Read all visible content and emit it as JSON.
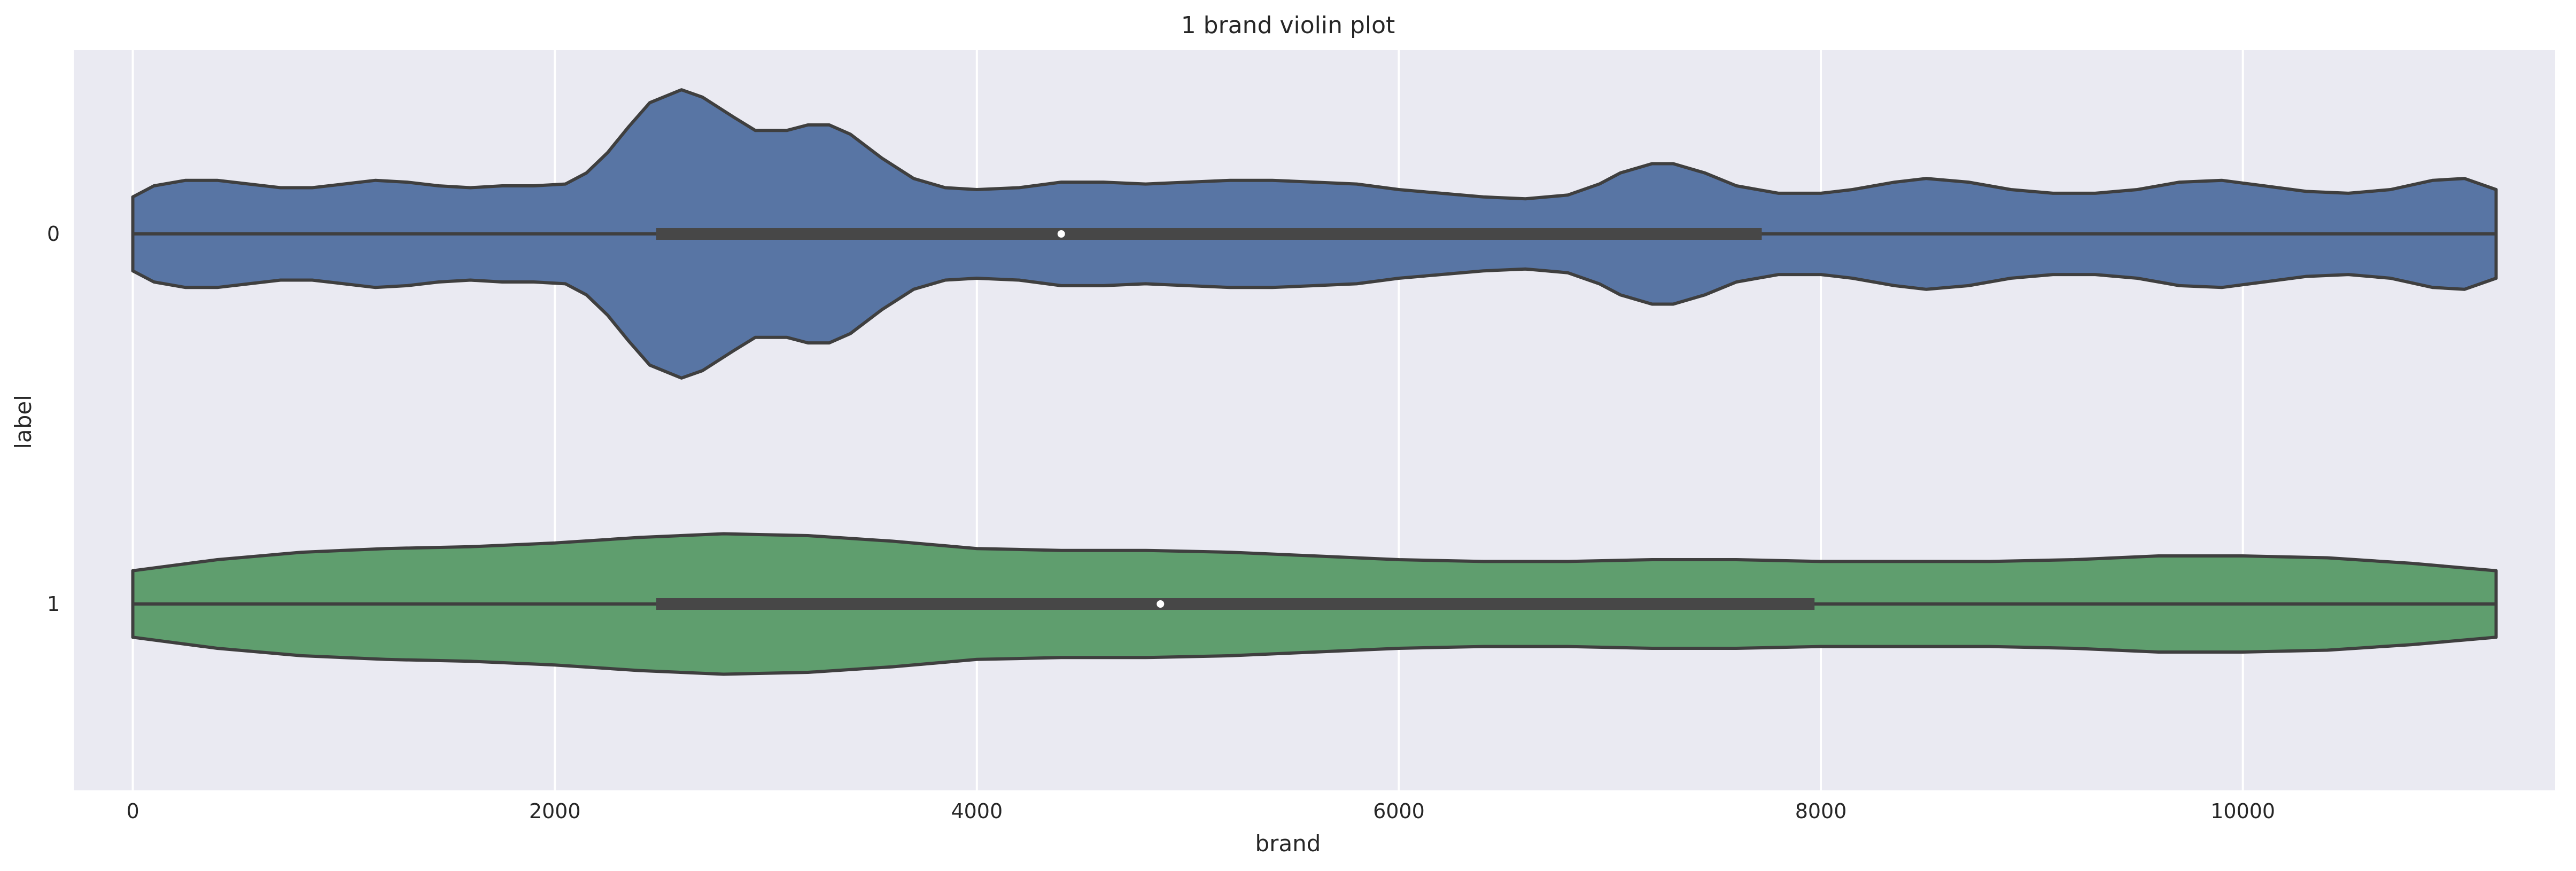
{
  "chart_data": {
    "type": "violin",
    "title": "1 brand violin plot",
    "xlabel": "brand",
    "ylabel": "label",
    "xlim": [
      -280,
      11480
    ],
    "x_ticks": [
      0,
      2000,
      4000,
      6000,
      8000,
      10000
    ],
    "x_tick_labels": [
      "0",
      "2000",
      "4000",
      "6000",
      "8000",
      "10000"
    ],
    "orientation": "horizontal",
    "grid": true,
    "categories": [
      "0",
      "1"
    ],
    "colors": [
      "#5875a4",
      "#5f9e6e"
    ],
    "series": [
      {
        "category": "0",
        "range": [
          0,
          11200
        ],
        "q1": 2480,
        "median": 4400,
        "q3": 7720,
        "density_profile": [
          [
            0,
            0.2
          ],
          [
            100,
            0.26
          ],
          [
            250,
            0.29
          ],
          [
            400,
            0.29
          ],
          [
            550,
            0.27
          ],
          [
            700,
            0.25
          ],
          [
            850,
            0.25
          ],
          [
            1000,
            0.27
          ],
          [
            1150,
            0.29
          ],
          [
            1300,
            0.28
          ],
          [
            1450,
            0.26
          ],
          [
            1600,
            0.25
          ],
          [
            1750,
            0.26
          ],
          [
            1900,
            0.26
          ],
          [
            2050,
            0.27
          ],
          [
            2150,
            0.33
          ],
          [
            2250,
            0.44
          ],
          [
            2350,
            0.58
          ],
          [
            2450,
            0.71
          ],
          [
            2600,
            0.78
          ],
          [
            2700,
            0.74
          ],
          [
            2850,
            0.63
          ],
          [
            2950,
            0.56
          ],
          [
            3100,
            0.56
          ],
          [
            3200,
            0.59
          ],
          [
            3300,
            0.59
          ],
          [
            3400,
            0.54
          ],
          [
            3550,
            0.41
          ],
          [
            3700,
            0.3
          ],
          [
            3850,
            0.25
          ],
          [
            4000,
            0.24
          ],
          [
            4200,
            0.25
          ],
          [
            4400,
            0.28
          ],
          [
            4600,
            0.28
          ],
          [
            4800,
            0.27
          ],
          [
            5000,
            0.28
          ],
          [
            5200,
            0.29
          ],
          [
            5400,
            0.29
          ],
          [
            5600,
            0.28
          ],
          [
            5800,
            0.27
          ],
          [
            6000,
            0.24
          ],
          [
            6200,
            0.22
          ],
          [
            6400,
            0.2
          ],
          [
            6600,
            0.19
          ],
          [
            6800,
            0.21
          ],
          [
            6950,
            0.27
          ],
          [
            7050,
            0.33
          ],
          [
            7200,
            0.38
          ],
          [
            7300,
            0.38
          ],
          [
            7450,
            0.33
          ],
          [
            7600,
            0.26
          ],
          [
            7800,
            0.22
          ],
          [
            8000,
            0.22
          ],
          [
            8150,
            0.24
          ],
          [
            8350,
            0.28
          ],
          [
            8500,
            0.3
          ],
          [
            8700,
            0.28
          ],
          [
            8900,
            0.24
          ],
          [
            9100,
            0.22
          ],
          [
            9300,
            0.22
          ],
          [
            9500,
            0.24
          ],
          [
            9700,
            0.28
          ],
          [
            9900,
            0.29
          ],
          [
            10100,
            0.26
          ],
          [
            10300,
            0.23
          ],
          [
            10500,
            0.22
          ],
          [
            10700,
            0.24
          ],
          [
            10900,
            0.29
          ],
          [
            11050,
            0.3
          ],
          [
            11200,
            0.24
          ]
        ]
      },
      {
        "category": "1",
        "range": [
          0,
          11200
        ],
        "q1": 2480,
        "median": 4870,
        "q3": 7970,
        "density_profile": [
          [
            0,
            0.18
          ],
          [
            400,
            0.24
          ],
          [
            800,
            0.28
          ],
          [
            1200,
            0.3
          ],
          [
            1600,
            0.31
          ],
          [
            2000,
            0.33
          ],
          [
            2400,
            0.36
          ],
          [
            2800,
            0.38
          ],
          [
            3200,
            0.37
          ],
          [
            3600,
            0.34
          ],
          [
            4000,
            0.3
          ],
          [
            4400,
            0.29
          ],
          [
            4800,
            0.29
          ],
          [
            5200,
            0.28
          ],
          [
            5600,
            0.26
          ],
          [
            6000,
            0.24
          ],
          [
            6400,
            0.23
          ],
          [
            6800,
            0.23
          ],
          [
            7200,
            0.24
          ],
          [
            7600,
            0.24
          ],
          [
            8000,
            0.23
          ],
          [
            8400,
            0.23
          ],
          [
            8800,
            0.23
          ],
          [
            9200,
            0.24
          ],
          [
            9600,
            0.26
          ],
          [
            10000,
            0.26
          ],
          [
            10400,
            0.25
          ],
          [
            10800,
            0.22
          ],
          [
            11200,
            0.18
          ]
        ]
      }
    ]
  }
}
